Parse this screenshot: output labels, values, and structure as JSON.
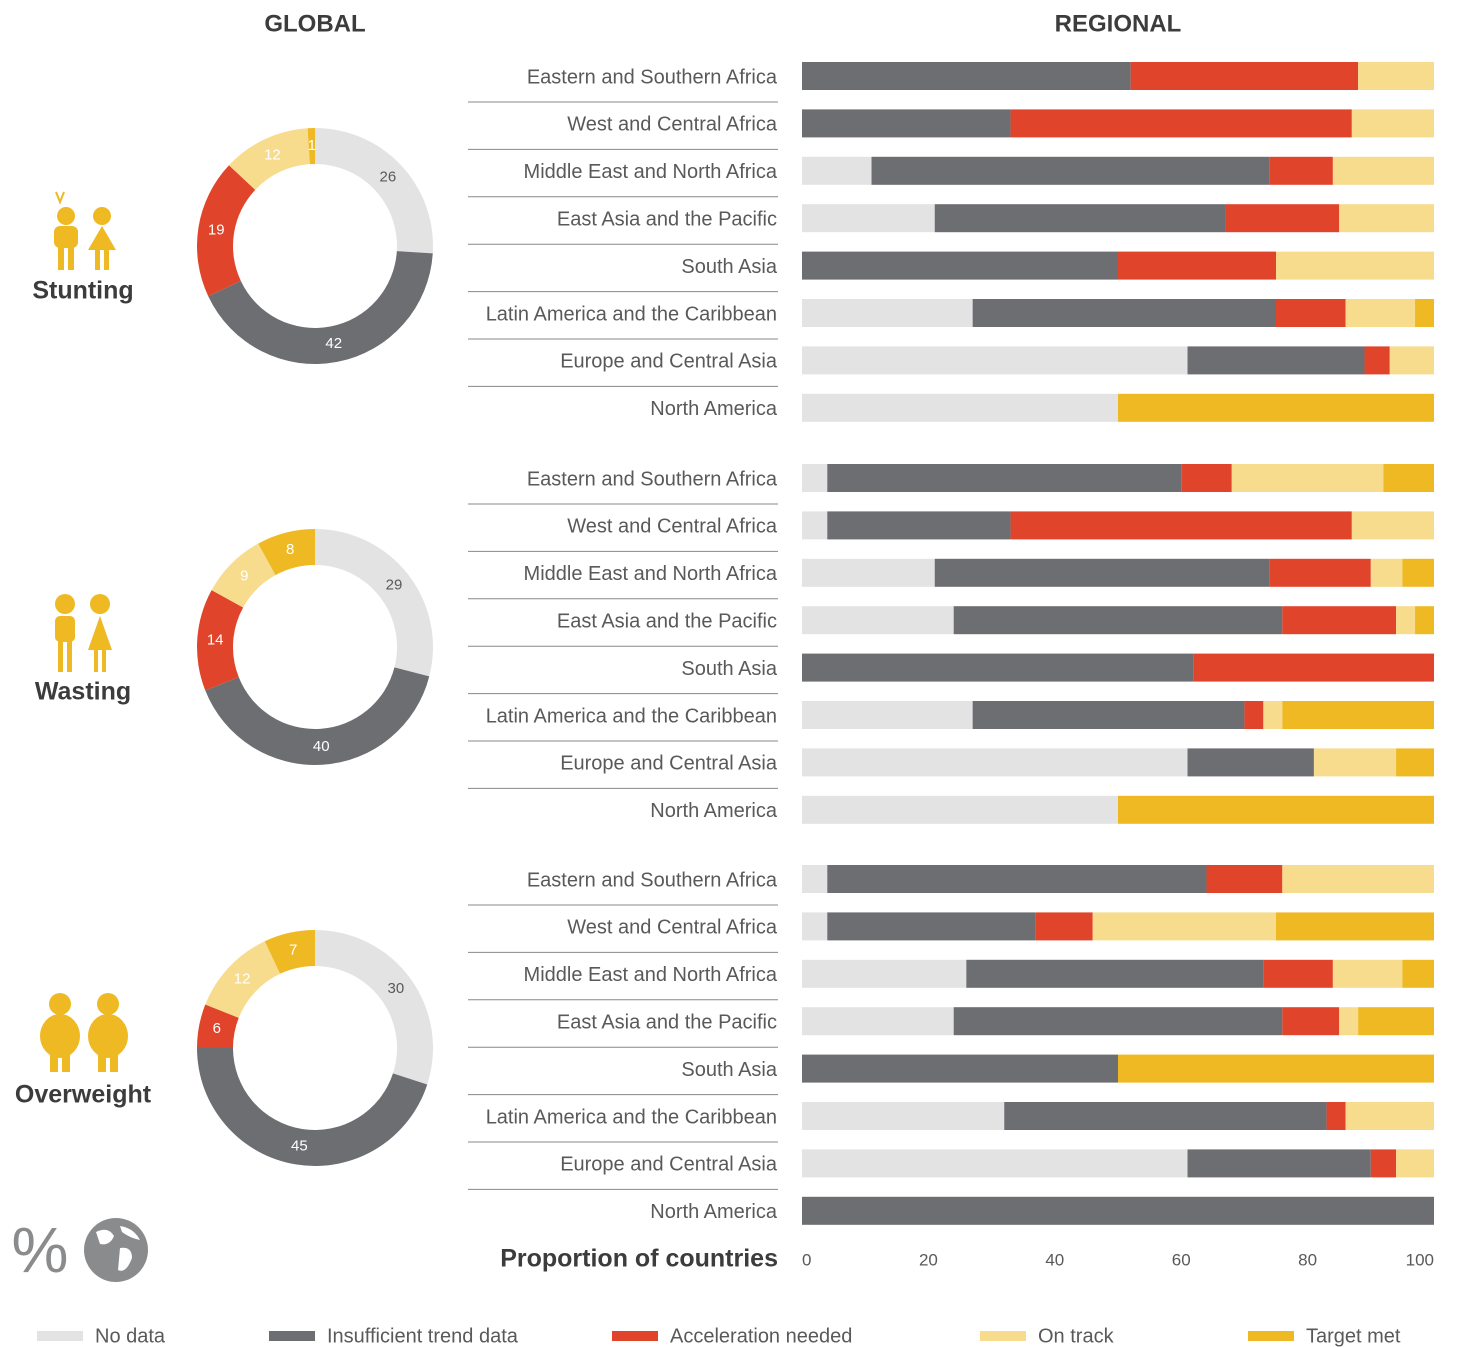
{
  "headers": {
    "global": "GLOBAL",
    "regional": "REGIONAL"
  },
  "unit_symbol": "%",
  "chart_data": [
    {
      "type": "pie",
      "title": "Stunting",
      "values": [
        26,
        42,
        19,
        12,
        1
      ],
      "colors": [
        "#e3e3e4",
        "#6d6e71",
        "#e0452b",
        "#f7dc8d",
        "#efb924"
      ]
    },
    {
      "type": "pie",
      "title": "Wasting",
      "values": [
        29,
        40,
        14,
        9,
        8
      ],
      "colors": [
        "#e3e3e4",
        "#6d6e71",
        "#e0452b",
        "#f7dc8d",
        "#efb924"
      ]
    },
    {
      "type": "pie",
      "title": "Overweight",
      "values": [
        30,
        45,
        6,
        12,
        7
      ],
      "colors": [
        "#e3e3e4",
        "#6d6e71",
        "#e0452b",
        "#f7dc8d",
        "#efb924"
      ]
    },
    {
      "type": "bar",
      "orientation": "horizontal",
      "stacked": true,
      "categories": [
        "Eastern and Southern Africa",
        "West and Central Africa",
        "Middle East and North Africa",
        "East Asia and the Pacific",
        "South Asia",
        "Latin America and the Caribbean",
        "Europe and Central Asia",
        "North America"
      ],
      "xlim": [
        0,
        100
      ],
      "series": [
        {
          "name": "No data",
          "color": "#e3e3e4",
          "values": [
            0,
            0,
            11,
            21,
            0,
            27,
            61,
            50
          ]
        },
        {
          "name": "Insufficient trend data",
          "color": "#6d6e71",
          "values": [
            52,
            33,
            63,
            46,
            50,
            48,
            28,
            0
          ]
        },
        {
          "name": "Acceleration needed",
          "color": "#e0452b",
          "values": [
            36,
            54,
            10,
            18,
            25,
            11,
            4,
            0
          ]
        },
        {
          "name": "On track",
          "color": "#f7dc8d",
          "values": [
            12,
            13,
            16,
            15,
            25,
            11,
            7,
            0
          ]
        },
        {
          "name": "Target met",
          "color": "#efb924",
          "values": [
            0,
            0,
            0,
            0,
            0,
            3,
            0,
            50
          ]
        }
      ]
    },
    {
      "type": "bar",
      "orientation": "horizontal",
      "stacked": true,
      "categories": [
        "Eastern and Southern Africa",
        "West and Central Africa",
        "Middle East and North Africa",
        "East Asia and the Pacific",
        "South Asia",
        "Latin America and the Caribbean",
        "Europe and Central Asia",
        "North America"
      ],
      "xlim": [
        0,
        100
      ],
      "series": [
        {
          "color": "#e3e3e4",
          "values": [
            4,
            4,
            21,
            24,
            0,
            27,
            61,
            50
          ]
        },
        {
          "color": "#6d6e71",
          "values": [
            56,
            29,
            53,
            52,
            62,
            43,
            20,
            0
          ]
        },
        {
          "color": "#e0452b",
          "values": [
            8,
            54,
            16,
            18,
            38,
            3,
            0,
            0
          ]
        },
        {
          "color": "#f7dc8d",
          "values": [
            24,
            13,
            5,
            3,
            0,
            3,
            13,
            0
          ]
        },
        {
          "color": "#efb924",
          "values": [
            8,
            0,
            5,
            3,
            0,
            24,
            6,
            50
          ]
        }
      ]
    },
    {
      "type": "bar",
      "orientation": "horizontal",
      "stacked": true,
      "categories": [
        "Eastern and Southern Africa",
        "West and Central Africa",
        "Middle East and North Africa",
        "East Asia and the Pacific",
        "South Asia",
        "Latin America and the Caribbean",
        "Europe and Central Asia",
        "North America"
      ],
      "xlim": [
        0,
        100
      ],
      "xticks": [
        0,
        20,
        40,
        60,
        80,
        100
      ],
      "xlabel": "Proportion of countries",
      "series": [
        {
          "color": "#e3e3e4",
          "values": [
            4,
            4,
            26,
            24,
            0,
            32,
            61,
            0
          ]
        },
        {
          "color": "#6d6e71",
          "values": [
            60,
            33,
            47,
            52,
            50,
            51,
            29,
            100
          ]
        },
        {
          "color": "#e0452b",
          "values": [
            12,
            9,
            11,
            9,
            0,
            3,
            4,
            0
          ]
        },
        {
          "color": "#f7dc8d",
          "values": [
            24,
            29,
            11,
            3,
            0,
            14,
            6,
            0
          ]
        },
        {
          "color": "#efb924",
          "values": [
            0,
            25,
            5,
            12,
            50,
            0,
            0,
            0
          ]
        }
      ]
    }
  ]
}
